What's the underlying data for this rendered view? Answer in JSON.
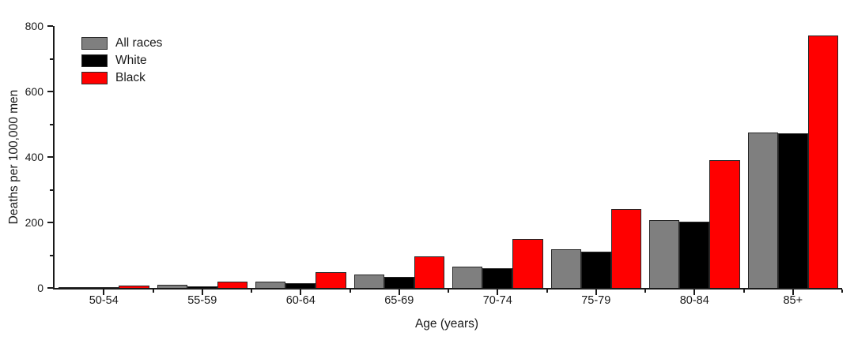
{
  "chart_data": {
    "type": "bar",
    "title": "",
    "xlabel": "Age (years)",
    "ylabel": "Deaths per 100,000 men",
    "categories": [
      "50-54",
      "55-59",
      "60-64",
      "65-69",
      "70-74",
      "75-79",
      "80-84",
      "85+"
    ],
    "series": [
      {
        "name": "All races",
        "color": "#7F7F7F",
        "values": [
          2,
          9,
          20,
          40,
          66,
          118,
          208,
          475
        ]
      },
      {
        "name": "White",
        "color": "#000000",
        "values": [
          2,
          6,
          15,
          34,
          61,
          111,
          202,
          473
        ]
      },
      {
        "name": "Black",
        "color": "#FF0000",
        "values": [
          8,
          20,
          48,
          97,
          150,
          240,
          390,
          770
        ]
      }
    ],
    "ylim": [
      0,
      800
    ],
    "y_major_ticks": [
      0,
      200,
      400,
      600,
      800
    ],
    "y_minor_ticks": [
      100,
      300,
      500,
      700
    ],
    "x_group_boundary_ticks": true,
    "grid": false,
    "legend_position": "top-left",
    "colors": {
      "axis": "#1a1a1a",
      "bar_border": "#262626",
      "text": "#1a1a1a"
    }
  }
}
